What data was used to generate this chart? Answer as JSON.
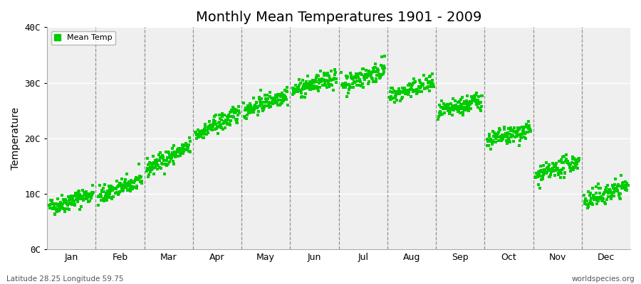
{
  "title": "Monthly Mean Temperatures 1901 - 2009",
  "ylabel": "Temperature",
  "ytick_labels": [
    "0C",
    "10C",
    "20C",
    "30C",
    "40C"
  ],
  "ytick_values": [
    0,
    10,
    20,
    30,
    40
  ],
  "ylim": [
    0,
    40
  ],
  "month_labels": [
    "Jan",
    "Feb",
    "Mar",
    "Apr",
    "May",
    "Jun",
    "Jul",
    "Aug",
    "Sep",
    "Oct",
    "Nov",
    "Dec"
  ],
  "legend_label": "Mean Temp",
  "dot_color": "#00CC00",
  "background_color": "#EFEFEF",
  "fig_background": "#FFFFFF",
  "bottom_left_text": "Latitude 28.25 Longitude 59.75",
  "bottom_right_text": "worldspecies.org",
  "title_fontsize": 14,
  "n_years": 109,
  "monthly_mean_start": [
    7.5,
    9.5,
    14.5,
    20.5,
    25.0,
    28.5,
    29.5,
    27.5,
    24.5,
    19.5,
    13.0,
    8.5
  ],
  "monthly_mean_end": [
    10.0,
    12.5,
    18.5,
    24.5,
    28.0,
    31.0,
    32.5,
    30.0,
    27.0,
    21.5,
    16.0,
    11.5
  ],
  "monthly_noise_std": [
    0.8,
    0.8,
    0.8,
    0.8,
    0.8,
    0.8,
    0.9,
    0.8,
    0.8,
    0.8,
    0.8,
    0.9
  ],
  "seed": 42
}
